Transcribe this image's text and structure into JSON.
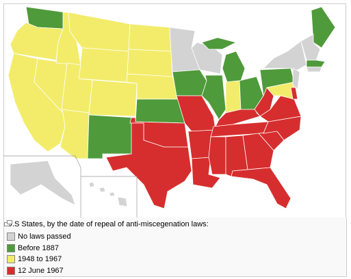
{
  "caption": "U.S States, by the date of repeal of anti-miscegenation laws:",
  "legend": [
    {
      "label": "No laws passed",
      "color": "#d3d3d3"
    },
    {
      "label": "Before 1887",
      "color": "#4f9a3a"
    },
    {
      "label": "1948 to 1967",
      "color": "#f2ec6a"
    },
    {
      "label": "12 June 1967",
      "color": "#d62e2e"
    }
  ]
}
